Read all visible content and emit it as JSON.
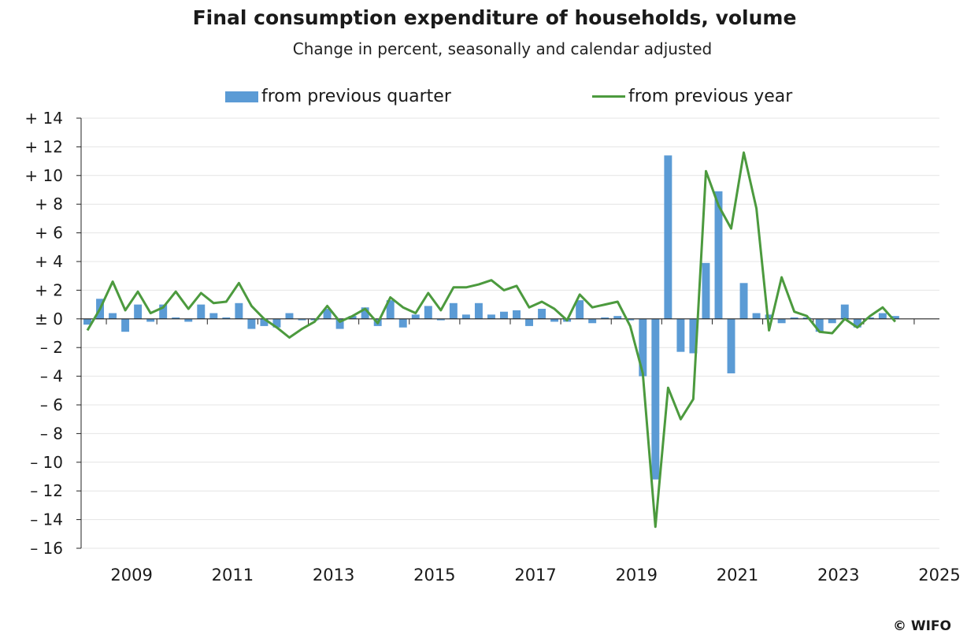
{
  "chart_data": {
    "type": "bar",
    "title": "Final consumption expenditure of households, volume",
    "subtitle": "Change in percent, seasonally and calendar adjusted",
    "xlabel": "",
    "ylabel": "",
    "ylim": [
      -16,
      14
    ],
    "y_ticks": [
      14,
      12,
      10,
      8,
      6,
      4,
      2,
      0,
      -2,
      -4,
      -6,
      -8,
      -10,
      -12,
      -14,
      -16
    ],
    "y_tick_labels": [
      "+ 14",
      "+ 12",
      "+ 10",
      "+ 8",
      "+ 6",
      "+ 4",
      "+ 2",
      "± 0",
      "– 2",
      "– 4",
      "– 6",
      "– 8",
      "– 10",
      "– 12",
      "– 14",
      "– 16"
    ],
    "x_tick_labels": [
      "2009",
      "2011",
      "2013",
      "2015",
      "2017",
      "2019",
      "2021",
      "2023",
      "2025"
    ],
    "first_quarter": "2008Q3",
    "legend_position": "top",
    "series": [
      {
        "name": "from previous quarter",
        "kind": "bar",
        "color": "#5b9bd5",
        "values": [
          -0.4,
          1.4,
          0.4,
          -0.9,
          1.0,
          -0.2,
          1.0,
          0.1,
          -0.2,
          1.0,
          0.4,
          0.1,
          1.1,
          -0.7,
          -0.5,
          -0.6,
          0.4,
          -0.1,
          -0.1,
          0.7,
          -0.7,
          0.2,
          0.8,
          -0.5,
          1.3,
          -0.6,
          0.3,
          0.9,
          -0.1,
          1.1,
          0.3,
          1.1,
          0.3,
          0.5,
          0.6,
          -0.5,
          0.7,
          -0.2,
          -0.2,
          1.3,
          -0.3,
          0.1,
          0.2,
          -0.1,
          -4.0,
          -11.2,
          11.4,
          -2.3,
          -2.4,
          3.9,
          8.9,
          -3.8,
          2.5,
          0.4,
          0.3,
          -0.3,
          0.1,
          0.1,
          -0.9,
          -0.3,
          1.0,
          -0.6,
          0.1,
          0.4,
          0.2
        ]
      },
      {
        "name": "from previous year",
        "kind": "line",
        "color": "#4c9a3e",
        "values": [
          -0.8,
          0.7,
          2.6,
          0.6,
          1.9,
          0.4,
          0.8,
          1.9,
          0.7,
          1.8,
          1.1,
          1.2,
          2.5,
          0.9,
          0.0,
          -0.6,
          -1.3,
          -0.7,
          -0.2,
          0.9,
          -0.2,
          0.2,
          0.7,
          -0.3,
          1.5,
          0.8,
          0.4,
          1.8,
          0.6,
          2.2,
          2.2,
          2.4,
          2.7,
          2.0,
          2.3,
          0.8,
          1.2,
          0.7,
          -0.1,
          1.7,
          0.8,
          1.0,
          1.2,
          -0.5,
          -3.8,
          -14.5,
          -4.8,
          -7.0,
          -5.6,
          10.3,
          7.9,
          6.3,
          11.6,
          7.7,
          -0.8,
          2.9,
          0.5,
          0.2,
          -0.9,
          -1.0,
          0.0,
          -0.6,
          0.2,
          0.8,
          -0.2
        ]
      }
    ]
  },
  "copyright": "© WIFO"
}
